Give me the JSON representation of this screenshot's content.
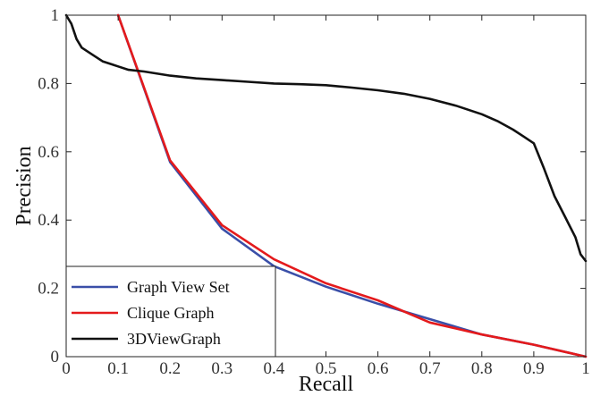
{
  "chart_data": {
    "type": "line",
    "title": "",
    "xlabel": "Recall",
    "ylabel": "Precision",
    "xlim": [
      0,
      1
    ],
    "ylim": [
      0,
      1
    ],
    "xticks": [
      "0",
      "0.1",
      "0.2",
      "0.3",
      "0.4",
      "0.5",
      "0.6",
      "0.7",
      "0.8",
      "0.9",
      "1"
    ],
    "yticks": [
      "0",
      "0.2",
      "0.4",
      "0.6",
      "0.8",
      "1"
    ],
    "grid": false,
    "legend_position": "bottom-left",
    "series": [
      {
        "name": "Graph View Set",
        "color": "#3a4fa8",
        "x": [
          0.1,
          0.2,
          0.3,
          0.4,
          0.5,
          0.6,
          0.7,
          0.8,
          0.9,
          1.0
        ],
        "y": [
          1.0,
          0.57,
          0.375,
          0.265,
          0.205,
          0.155,
          0.11,
          0.065,
          0.035,
          0.0
        ]
      },
      {
        "name": "Clique Graph",
        "color": "#e41a1c",
        "x": [
          0.1,
          0.2,
          0.3,
          0.4,
          0.5,
          0.6,
          0.7,
          0.8,
          0.9,
          1.0
        ],
        "y": [
          1.0,
          0.575,
          0.385,
          0.285,
          0.215,
          0.165,
          0.1,
          0.065,
          0.035,
          0.0
        ]
      },
      {
        "name": "3DViewGraph",
        "color": "#111111",
        "x": [
          0.0,
          0.01,
          0.02,
          0.03,
          0.05,
          0.07,
          0.09,
          0.1,
          0.12,
          0.15,
          0.2,
          0.25,
          0.3,
          0.35,
          0.4,
          0.45,
          0.5,
          0.55,
          0.6,
          0.65,
          0.7,
          0.75,
          0.8,
          0.83,
          0.86,
          0.88,
          0.9,
          0.92,
          0.94,
          0.96,
          0.98,
          0.99,
          1.0
        ],
        "y": [
          1.0,
          0.975,
          0.93,
          0.905,
          0.885,
          0.865,
          0.855,
          0.85,
          0.84,
          0.835,
          0.823,
          0.815,
          0.81,
          0.805,
          0.8,
          0.798,
          0.795,
          0.788,
          0.78,
          0.77,
          0.755,
          0.735,
          0.71,
          0.69,
          0.665,
          0.645,
          0.625,
          0.55,
          0.47,
          0.41,
          0.35,
          0.3,
          0.28
        ]
      }
    ]
  }
}
